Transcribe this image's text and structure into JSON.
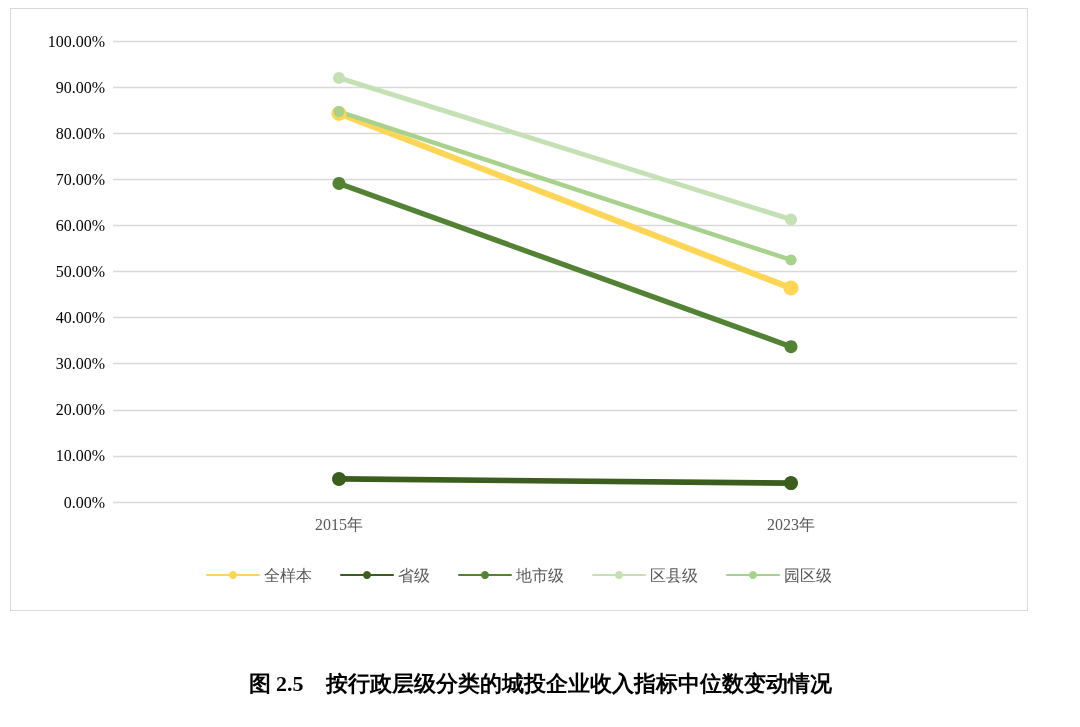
{
  "chart_data": {
    "type": "line",
    "title": "图 2.5　按行政层级分类的城投企业收入指标中位数变动情况",
    "categories": [
      "2015年",
      "2023年"
    ],
    "series": [
      {
        "name": "全样本",
        "color": "#ffd555",
        "values": [
          84.3,
          46.4
        ]
      },
      {
        "name": "省级",
        "color": "#3b5e1f",
        "values": [
          5.0,
          4.1
        ]
      },
      {
        "name": "地市级",
        "color": "#548235",
        "values": [
          69.1,
          33.7
        ]
      },
      {
        "name": "区县级",
        "color": "#c5e0b4",
        "values": [
          92.0,
          61.3
        ]
      },
      {
        "name": "园区级",
        "color": "#a9d18e",
        "values": [
          84.7,
          52.5
        ]
      }
    ],
    "ylim": [
      0,
      100
    ],
    "yticks": [
      {
        "value": 0,
        "label": "0.00%"
      },
      {
        "value": 10,
        "label": "10.00%"
      },
      {
        "value": 20,
        "label": "20.00%"
      },
      {
        "value": 30,
        "label": "30.00%"
      },
      {
        "value": 40,
        "label": "40.00%"
      },
      {
        "value": 50,
        "label": "50.00%"
      },
      {
        "value": 60,
        "label": "60.00%"
      },
      {
        "value": 70,
        "label": "70.00%"
      },
      {
        "value": 80,
        "label": "80.00%"
      },
      {
        "value": 90,
        "label": "90.00%"
      },
      {
        "value": 100,
        "label": "100.00%"
      }
    ],
    "grid": "y",
    "legend": "bottom",
    "marker": "circle",
    "line_style": "solid"
  }
}
